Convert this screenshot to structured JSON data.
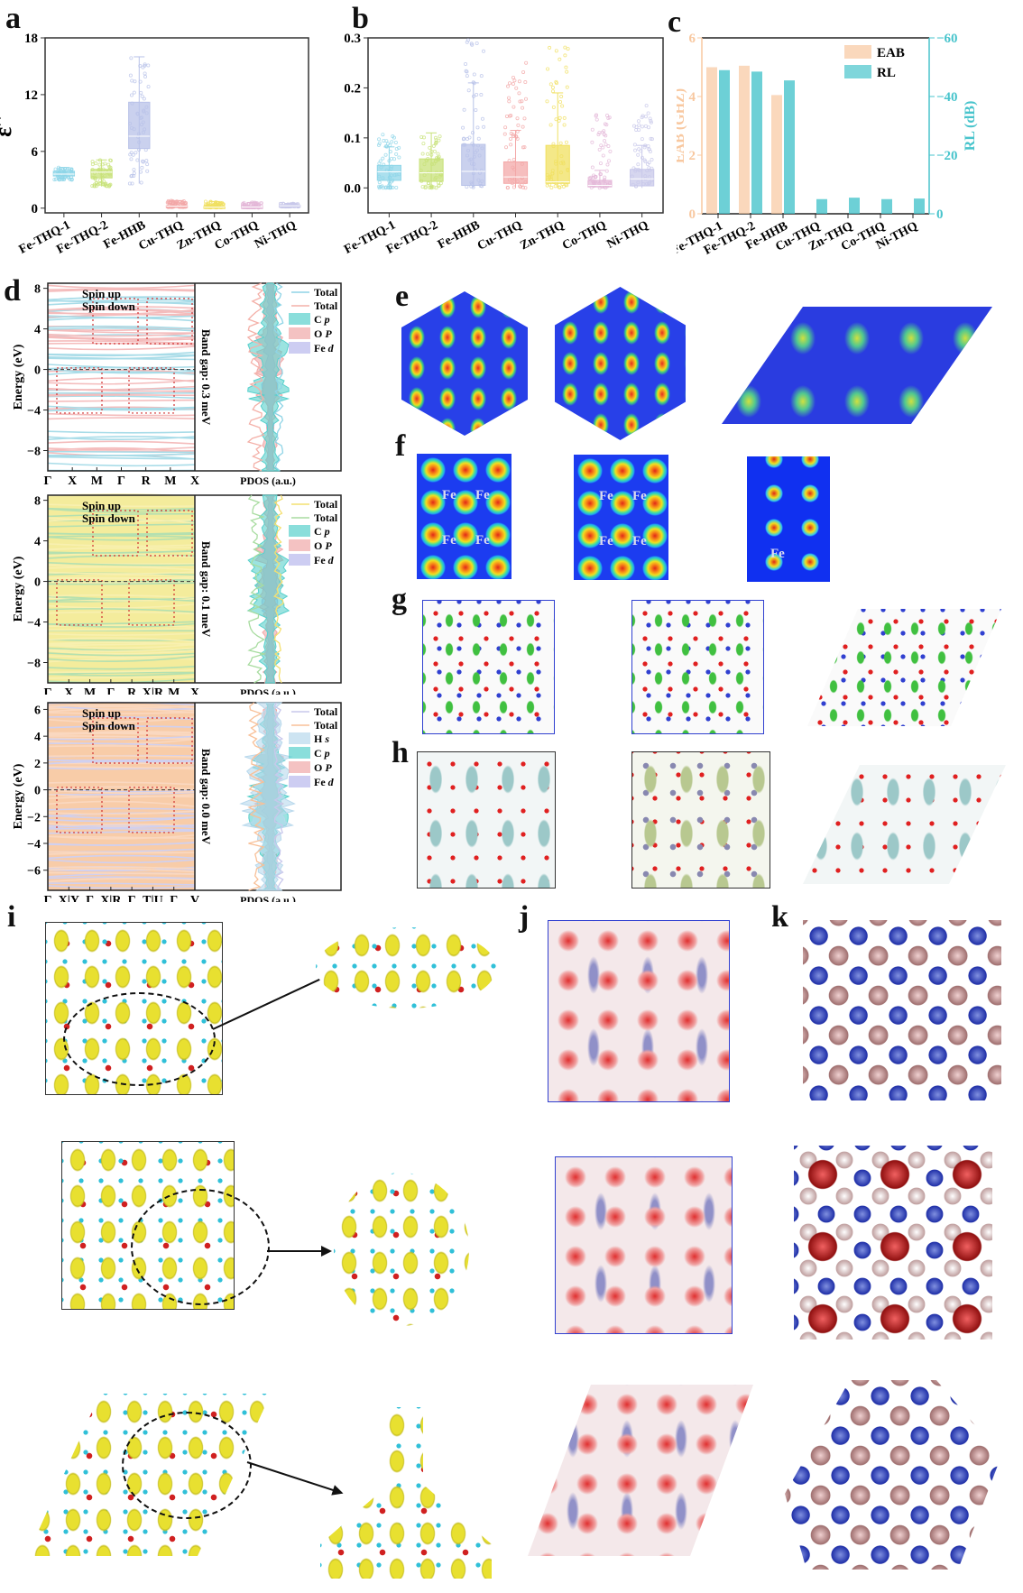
{
  "panel_labels": {
    "a": "a",
    "b": "b",
    "c": "c",
    "d": "d",
    "e": "e",
    "f": "f",
    "g": "g",
    "h": "h",
    "i": "i",
    "j": "j",
    "k": "k"
  },
  "chart_data": [
    {
      "id": "a",
      "type": "box",
      "ylabel": "ε′′",
      "ylim": [
        -0.5,
        18
      ],
      "yticks": [
        0,
        6,
        12,
        18
      ],
      "categories": [
        "Fe-THQ-1",
        "Fe-THQ-2",
        "Fe-HHB",
        "Cu-THQ",
        "Zn-THQ",
        "Co-THQ",
        "Ni-THQ"
      ],
      "boxes": [
        {
          "min": 3.0,
          "q1": 3.4,
          "median": 3.6,
          "q3": 3.9,
          "max": 4.3
        },
        {
          "min": 2.3,
          "q1": 3.2,
          "median": 3.8,
          "q3": 4.1,
          "max": 5.1
        },
        {
          "min": 2.6,
          "q1": 6.3,
          "median": 7.6,
          "q3": 11.2,
          "max": 16.0
        },
        {
          "min": 0.1,
          "q1": 0.15,
          "median": 0.2,
          "q3": 0.25,
          "max": 0.8
        },
        {
          "min": 0.05,
          "q1": 0.08,
          "median": 0.1,
          "q3": 0.15,
          "max": 0.7
        },
        {
          "min": 0.05,
          "q1": 0.08,
          "median": 0.12,
          "q3": 0.15,
          "max": 0.6
        },
        {
          "min": 0.15,
          "q1": 0.2,
          "median": 0.25,
          "q3": 0.3,
          "max": 0.5
        }
      ],
      "colors": [
        "#8fd6e8",
        "#c8e27a",
        "#b8c2e8",
        "#f3a8a8",
        "#f0e060",
        "#e4b8d8",
        "#c8c8ea"
      ]
    },
    {
      "id": "b",
      "type": "box",
      "ylabel": "μ′′",
      "ylim": [
        -0.05,
        0.3
      ],
      "yticks": [
        0.0,
        0.1,
        0.2,
        0.3
      ],
      "ytick_labels": [
        "0.0",
        "0.1",
        "0.2",
        "0.3"
      ],
      "categories": [
        "Fe-THQ-1",
        "Fe-THQ-2",
        "Fe-HHB",
        "Cu-THQ",
        "Zn-THQ",
        "Co-THQ",
        "Ni-THQ"
      ],
      "boxes": [
        {
          "min": 0.0,
          "q1": 0.015,
          "median": 0.032,
          "q3": 0.045,
          "max": 0.082,
          "outlier_max": 0.11
        },
        {
          "min": 0.0,
          "q1": 0.013,
          "median": 0.03,
          "q3": 0.058,
          "max": 0.11,
          "outlier_max": 0.11
        },
        {
          "min": 0.0,
          "q1": 0.005,
          "median": 0.033,
          "q3": 0.087,
          "max": 0.21,
          "outlier_max": 0.3
        },
        {
          "min": 0.0,
          "q1": 0.009,
          "median": 0.022,
          "q3": 0.052,
          "max": 0.115,
          "outlier_max": 0.25
        },
        {
          "min": 0.0,
          "q1": 0.009,
          "median": 0.012,
          "q3": 0.085,
          "max": 0.19,
          "outlier_max": 0.29
        },
        {
          "min": 0.0,
          "q1": 0.002,
          "median": 0.005,
          "q3": 0.015,
          "max": 0.035,
          "outlier_max": 0.15
        },
        {
          "min": 0.0,
          "q1": 0.004,
          "median": 0.018,
          "q3": 0.037,
          "max": 0.085,
          "outlier_max": 0.17
        }
      ],
      "colors": [
        "#8fd6e8",
        "#c8e27a",
        "#b8c2e8",
        "#f3a8a8",
        "#f0e060",
        "#e4b8d8",
        "#c8c8ea"
      ]
    },
    {
      "id": "c",
      "type": "bar",
      "categories": [
        "Fe-THQ-1",
        "Fe-THQ-2",
        "Fe-HHB",
        "Cu-THQ",
        "Zn-THQ",
        "Co-THQ",
        "Ni-THQ"
      ],
      "ylabel_left": "EAB (GHZ)",
      "ylabel_right": "RL (dB)",
      "ylim_left": [
        0,
        6
      ],
      "yticks_left": [
        0,
        2,
        4,
        6
      ],
      "ylim_right": [
        0,
        -60
      ],
      "yticks_right": [
        0,
        -20,
        -40,
        -60
      ],
      "series": [
        {
          "name": "EAB",
          "axis": "left",
          "values": [
            5.0,
            5.05,
            4.05,
            0,
            0,
            0,
            0
          ],
          "color": "#f8c8a0"
        },
        {
          "name": "RL",
          "axis": "right",
          "values": [
            -49,
            -48.5,
            -45.5,
            -5,
            -5.5,
            -5,
            -5.2
          ],
          "color": "#48c4cc"
        }
      ],
      "legend": "top-right"
    }
  ],
  "band_panels": [
    {
      "ylabel": "Energy (eV)",
      "xlabel": "PDOS (a.u.)",
      "yticks": [
        8,
        4,
        0,
        -4,
        -8
      ],
      "ylim": [
        -10,
        8.5
      ],
      "kpath": [
        "Γ",
        "X",
        "M",
        "Γ",
        "R",
        "M",
        "X"
      ],
      "spin_up": "Spin up",
      "spin_down": "Spin down",
      "band_gap": "Band gap: 0.3 meV",
      "legend": [
        {
          "label": "Total",
          "kind": "line",
          "color": "#8fd4e6"
        },
        {
          "label": "Total",
          "kind": "line",
          "color": "#f4b0a8"
        },
        {
          "label": "C p",
          "kind": "fill",
          "color": "#58d0cc"
        },
        {
          "label": "O P",
          "kind": "fill",
          "color": "#f0a8a8"
        },
        {
          "label": "Fe d",
          "kind": "fill",
          "color": "#b8b8ec"
        }
      ],
      "bg": "#ffffff",
      "line1": "#a8dce8",
      "line2": "#f4bcbc",
      "fill_bg": "#a8dce8"
    },
    {
      "ylabel": "Energy (eV)",
      "xlabel": "PDOS (a.u.)",
      "yticks": [
        8,
        4,
        0,
        -4,
        -8
      ],
      "ylim": [
        -10,
        8.5
      ],
      "kpath": [
        "Γ",
        "X",
        "M",
        "Γ",
        "R",
        "X|R",
        "M",
        "X"
      ],
      "spin_up": "Spin up",
      "spin_down": "Spin down",
      "band_gap": "Band gap: 0.1 meV",
      "legend": [
        {
          "label": "Total",
          "kind": "line",
          "color": "#f4e070"
        },
        {
          "label": "Total",
          "kind": "line",
          "color": "#a8dca0"
        },
        {
          "label": "C p",
          "kind": "fill",
          "color": "#58d0cc"
        },
        {
          "label": "O P",
          "kind": "fill",
          "color": "#f0a8a8"
        },
        {
          "label": "Fe d",
          "kind": "fill",
          "color": "#b8b8ec"
        }
      ],
      "bg": "#f4ec9c",
      "line1": "#b4e0b0",
      "line2": "#f8f0b0",
      "fill_bg": "#f4ec9c"
    },
    {
      "ylabel": "Energy (eV)",
      "xlabel": "PDOS (a.u.)",
      "yticks": [
        6,
        4,
        2,
        0,
        -2,
        -4,
        -6
      ],
      "ylim": [
        -7.5,
        6.5
      ],
      "kpath": [
        "Γ",
        "X|Y",
        "Γ",
        "X|R",
        "Γ",
        "T|U",
        "Γ",
        "V"
      ],
      "spin_up": "Spin up",
      "spin_down": "Spin down",
      "band_gap": "Band gap: 0.0 meV",
      "legend": [
        {
          "label": "Total",
          "kind": "line",
          "color": "#c8c8ec"
        },
        {
          "label": "Total",
          "kind": "line",
          "color": "#f8c098"
        },
        {
          "label": "H s",
          "kind": "fill",
          "color": "#b8d8ec"
        },
        {
          "label": "C p",
          "kind": "fill",
          "color": "#58d0cc"
        },
        {
          "label": "O P",
          "kind": "fill",
          "color": "#f0a8a8"
        },
        {
          "label": "Fe d",
          "kind": "fill",
          "color": "#b8b8ec"
        }
      ],
      "bg": "#f8cca8",
      "line1": "#d0d0f0",
      "line2": "#fad8c0",
      "fill_bg": "#f8cca8"
    }
  ],
  "f_labels": {
    "map1": [
      "Fe",
      "Fe",
      "Fe",
      "Fe"
    ],
    "map2": [
      "Fe",
      "Fe",
      "Fe",
      "Fe"
    ],
    "map3": [
      "Fe"
    ]
  }
}
